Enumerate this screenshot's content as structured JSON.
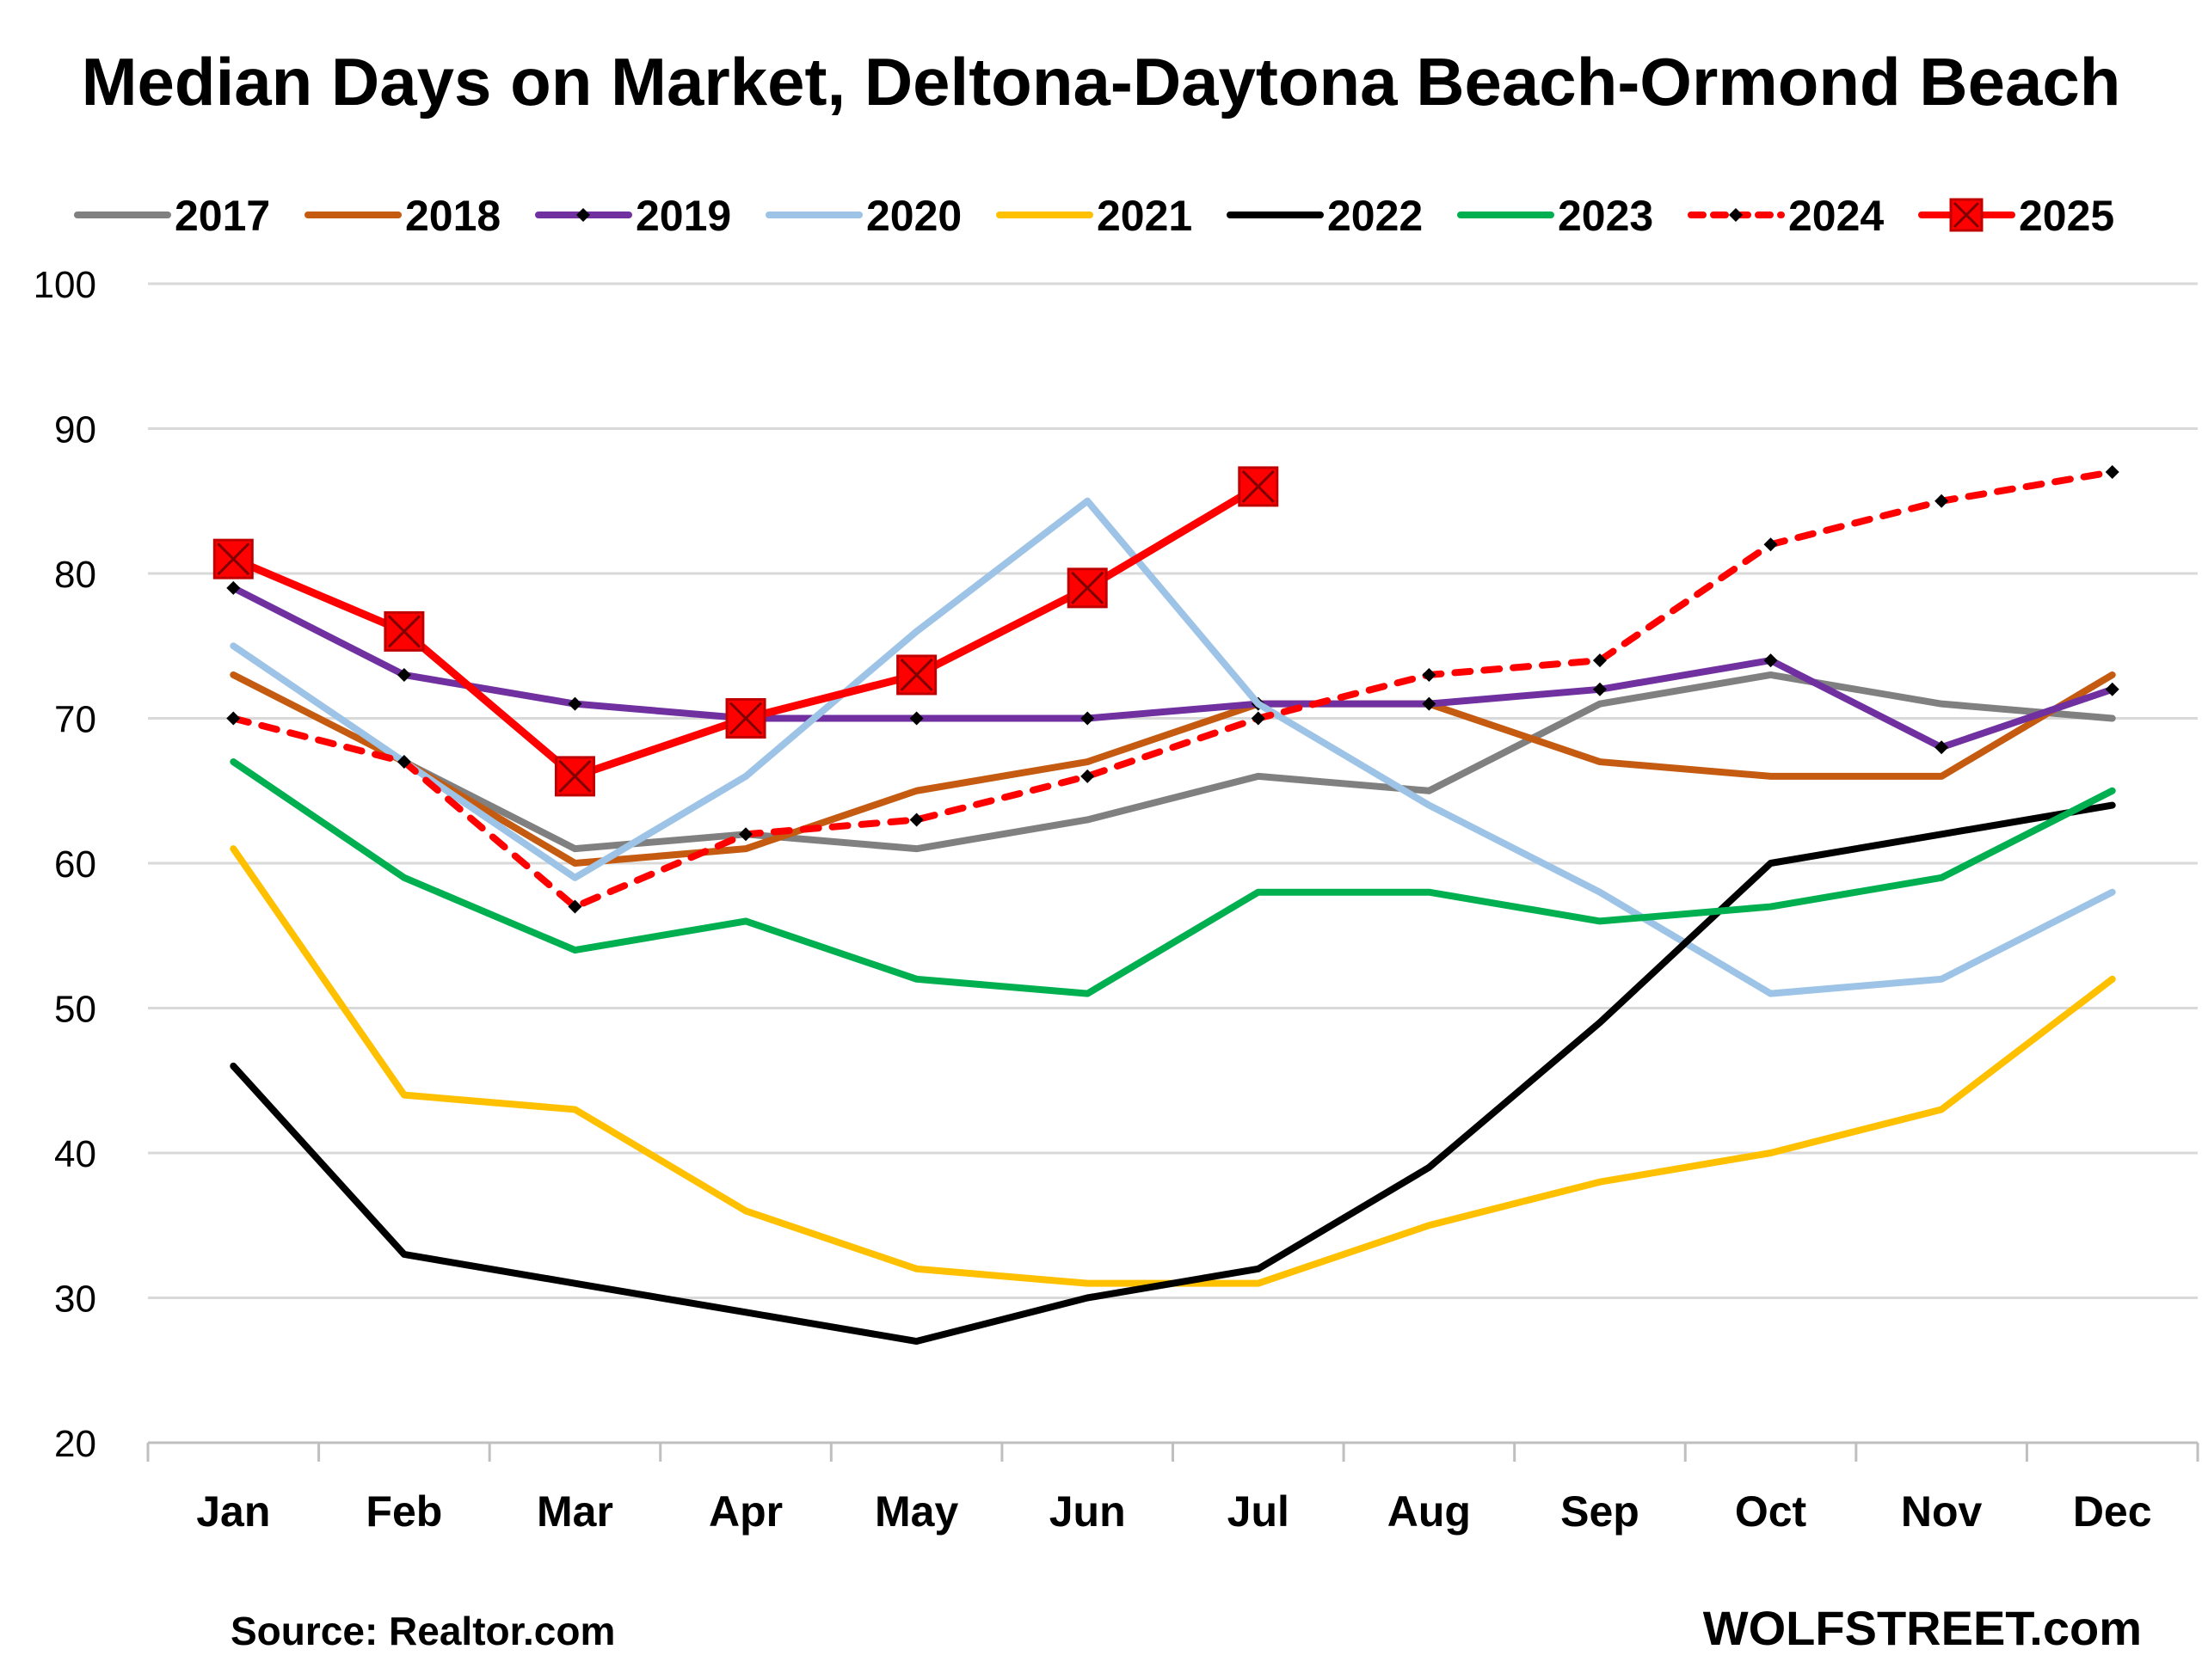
{
  "chart_data": {
    "type": "line",
    "title": "Median Days on Market, Deltona-Daytona Beach-Ormond Beach",
    "categories": [
      "Jan",
      "Feb",
      "Mar",
      "Apr",
      "May",
      "Jun",
      "Jul",
      "Aug",
      "Sep",
      "Oct",
      "Nov",
      "Dec"
    ],
    "ylim": [
      20,
      100
    ],
    "yticks": [
      100,
      90,
      80,
      70,
      60,
      50,
      40,
      30,
      20
    ],
    "grid": true,
    "legend_position": "top",
    "series": [
      {
        "name": "2017",
        "color": "#808080",
        "style": "solid",
        "marker": "none",
        "values": [
          null,
          67,
          61,
          62,
          61,
          63,
          66,
          65,
          71,
          73,
          71,
          70
        ]
      },
      {
        "name": "2018",
        "color": "#C55A11",
        "style": "solid",
        "marker": "none",
        "values": [
          73,
          67,
          60,
          61,
          65,
          67,
          71,
          71,
          67,
          66,
          66,
          73
        ]
      },
      {
        "name": "2019",
        "color": "#7030A0",
        "style": "solid",
        "marker": "diamond",
        "values": [
          79,
          73,
          71,
          70,
          70,
          70,
          71,
          71,
          72,
          74,
          68,
          72
        ]
      },
      {
        "name": "2020",
        "color": "#9DC3E6",
        "style": "solid",
        "marker": "none",
        "values": [
          75,
          67,
          59,
          66,
          76,
          85,
          71,
          64,
          58,
          51,
          52,
          58
        ]
      },
      {
        "name": "2021",
        "color": "#FFC000",
        "style": "solid",
        "marker": "none",
        "values": [
          61,
          44,
          43,
          36,
          32,
          31,
          31,
          35,
          38,
          40,
          43,
          52
        ]
      },
      {
        "name": "2022",
        "color": "#000000",
        "style": "solid",
        "marker": "none",
        "values": [
          46,
          33,
          31,
          29,
          27,
          30,
          32,
          39,
          49,
          60,
          62,
          64
        ]
      },
      {
        "name": "2023",
        "color": "#00B050",
        "style": "solid",
        "marker": "none",
        "values": [
          67,
          59,
          54,
          56,
          52,
          51,
          58,
          58,
          56,
          57,
          59,
          65
        ]
      },
      {
        "name": "2024",
        "color": "#FF0000",
        "style": "dashed",
        "marker": "diamond",
        "values": [
          70,
          67,
          57,
          62,
          63,
          66,
          70,
          73,
          74,
          82,
          85,
          87
        ]
      },
      {
        "name": "2025",
        "color": "#FF0000",
        "style": "solid",
        "marker": "square-x",
        "values": [
          81,
          76,
          66,
          70,
          73,
          79,
          86,
          null,
          null,
          null,
          null,
          null
        ]
      }
    ]
  },
  "footer": {
    "source": "Source: Realtor.com",
    "brand": "WOLFSTREET.com"
  }
}
